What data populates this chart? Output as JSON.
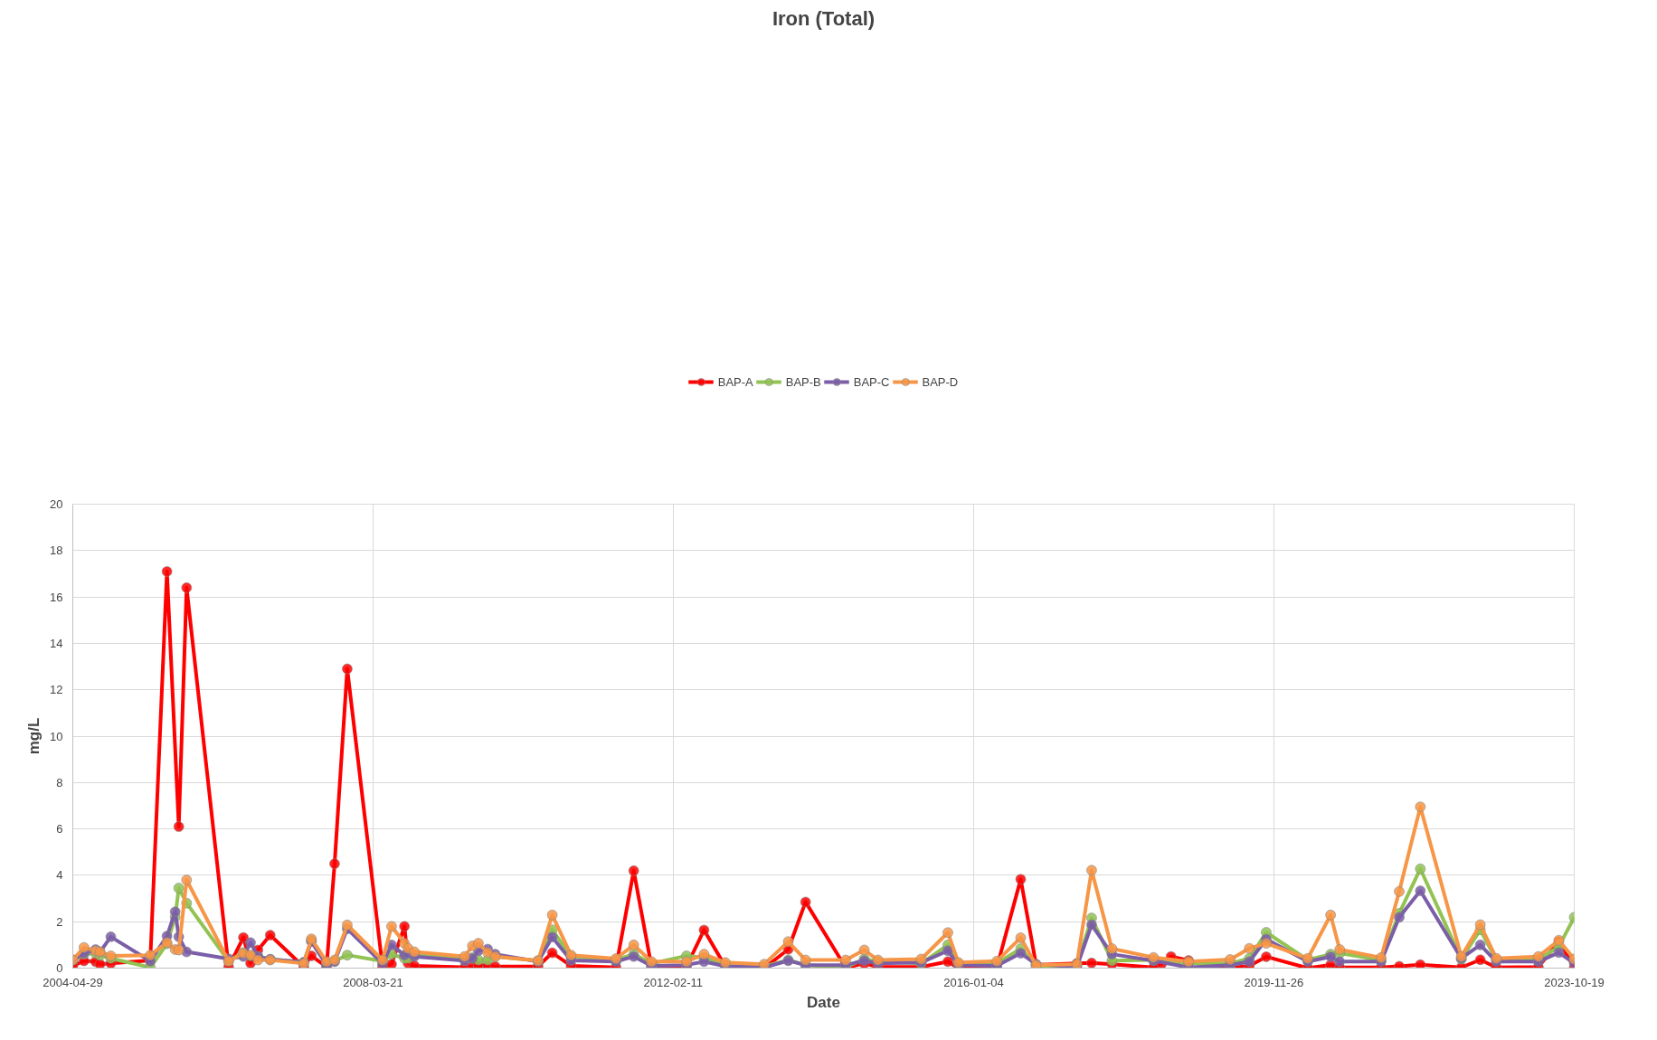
{
  "chart_data": {
    "type": "line",
    "title": "Iron (Total)",
    "xlabel": "Date",
    "ylabel": "mg/L",
    "x": [
      "2004-04-29",
      "2004-06-21",
      "2004-08-15",
      "2004-09-05",
      "2004-10-26",
      "2005-05-01",
      "2005-07-19",
      "2005-08-27",
      "2005-09-13",
      "2005-10-20",
      "2006-05-07",
      "2006-07-16",
      "2006-08-19",
      "2006-09-23",
      "2006-11-20",
      "2007-04-28",
      "2007-06-03",
      "2007-08-14",
      "2007-09-21",
      "2007-11-20",
      "2008-05-05",
      "2008-06-17",
      "2008-08-17",
      "2008-09-03",
      "2008-10-03",
      "2009-05-29",
      "2009-07-05",
      "2009-08-02",
      "2009-09-15",
      "2009-10-21",
      "2010-05-12",
      "2010-07-18",
      "2010-10-15",
      "2011-05-16",
      "2011-08-08",
      "2011-10-31",
      "2012-04-14",
      "2012-07-06",
      "2012-10-15",
      "2013-04-17",
      "2013-08-09",
      "2013-10-30",
      "2014-05-08",
      "2014-08-04",
      "2014-10-08",
      "2015-05-01",
      "2015-09-04",
      "2015-10-24",
      "2016-04-23",
      "2016-08-14",
      "2016-10-26",
      "2017-05-07",
      "2017-07-16",
      "2017-10-20",
      "2018-05-05",
      "2018-10-18",
      "2019-05-03",
      "2019-08-02",
      "2019-10-21",
      "2020-05-05",
      "2020-08-21",
      "2020-10-03",
      "2021-04-17",
      "2021-07-12",
      "2021-10-20",
      "2022-05-02",
      "2022-07-31",
      "2022-10-15",
      "2023-05-02",
      "2023-08-07",
      "2023-10-19"
    ],
    "series": [
      {
        "name": "BAP-A",
        "color": "#ff0000",
        "x": [
          "2004-04-29",
          "2004-06-21",
          "2004-08-15",
          "2004-09-05",
          "2004-10-26",
          "2005-05-01",
          "2005-07-19",
          "2005-09-13",
          "2005-10-20",
          "2006-05-07",
          "2006-07-16",
          "2006-08-19",
          "2006-09-23",
          "2006-11-20",
          "2007-04-28",
          "2007-06-03",
          "2007-08-14",
          "2007-09-21",
          "2007-11-20",
          "2008-05-05",
          "2008-06-17",
          "2008-08-17",
          "2008-09-03",
          "2008-10-03",
          "2009-05-29",
          "2009-07-05",
          "2009-08-02",
          "2009-09-15",
          "2009-10-21",
          "2010-05-12",
          "2010-07-18",
          "2010-10-15",
          "2011-05-16",
          "2011-08-08",
          "2011-10-31",
          "2012-04-14",
          "2012-07-06",
          "2012-10-15",
          "2013-04-17",
          "2013-08-09",
          "2013-10-30",
          "2014-05-08",
          "2014-08-04",
          "2014-10-08",
          "2015-05-01",
          "2015-09-04",
          "2015-10-24",
          "2016-04-23",
          "2016-08-14",
          "2016-10-26",
          "2017-05-07",
          "2017-07-16",
          "2017-10-20",
          "2018-05-05",
          "2018-06-14",
          "2018-07-27",
          "2018-10-18",
          "2019-05-03",
          "2019-08-02",
          "2019-10-21",
          "2020-05-05",
          "2020-08-21",
          "2020-10-03",
          "2021-04-17",
          "2021-07-12",
          "2021-10-20",
          "2022-05-02",
          "2022-07-31",
          "2022-10-15",
          "2023-05-02",
          "2023-08-07",
          "2023-10-19"
        ],
        "values": [
          0.09,
          0.31,
          0.28,
          0.17,
          0.2,
          0.33,
          17.1,
          6.1,
          16.4,
          0.05,
          1.32,
          0.21,
          0.78,
          1.42,
          0.05,
          0.53,
          0.05,
          4.5,
          12.9,
          0.06,
          0.17,
          1.8,
          0.21,
          0.1,
          0.03,
          0.07,
          0.1,
          0.1,
          0.07,
          0.08,
          0.66,
          0.1,
          0.03,
          4.2,
          0.07,
          0.07,
          1.64,
          0.07,
          0.0,
          0.81,
          2.85,
          0.02,
          0.2,
          0.05,
          0.05,
          0.28,
          0.0,
          0.03,
          3.83,
          0.14,
          0.2,
          0.22,
          0.17,
          0.03,
          0.2,
          0.5,
          0.33,
          0.0,
          0.1,
          0.49,
          0.0,
          0.14,
          0.03,
          0.03,
          0.08,
          0.15,
          0.03,
          0.36,
          0.03,
          0.05,
          1.14,
          0.03
        ]
      },
      {
        "name": "BAP-B",
        "color": "#92c353",
        "values": [
          0.35,
          0.6,
          0.64,
          0.55,
          0.42,
          0.03,
          1.05,
          2.2,
          3.45,
          2.8,
          0.3,
          0.67,
          0.53,
          0.5,
          0.38,
          0.25,
          1.2,
          0.2,
          0.3,
          0.56,
          0.3,
          0.6,
          0.42,
          0.42,
          0.58,
          0.4,
          0.45,
          0.35,
          0.35,
          0.5,
          0.32,
          1.65,
          0.5,
          0.35,
          0.6,
          0.2,
          0.53,
          0.45,
          0.15,
          0.07,
          0.35,
          0.13,
          0.03,
          0.4,
          0.28,
          0.2,
          1.0,
          0.2,
          0.2,
          0.84,
          0.08,
          0.1,
          2.16,
          0.32,
          0.35,
          0.2,
          0.2,
          0.42,
          1.54,
          0.35,
          0.6,
          0.64,
          0.35,
          2.36,
          4.28,
          0.39,
          1.65,
          0.35,
          0.35,
          0.93,
          2.19
        ]
      },
      {
        "name": "BAP-C",
        "color": "#7b5ea7",
        "values": [
          0.35,
          0.64,
          0.8,
          0.7,
          1.35,
          0.3,
          1.38,
          2.43,
          1.35,
          0.7,
          0.4,
          0.5,
          1.1,
          0.5,
          0.38,
          0.25,
          1.14,
          0.13,
          0.28,
          1.69,
          0.2,
          1.0,
          0.56,
          0.64,
          0.5,
          0.32,
          0.42,
          0.75,
          0.82,
          0.6,
          0.28,
          1.34,
          0.33,
          0.28,
          0.5,
          0.1,
          0.13,
          0.28,
          0.08,
          0.03,
          0.32,
          0.13,
          0.13,
          0.32,
          0.2,
          0.24,
          0.75,
          0.13,
          0.1,
          0.64,
          0.17,
          0.06,
          1.87,
          0.6,
          0.32,
          0.03,
          0.13,
          0.28,
          1.25,
          0.28,
          0.49,
          0.28,
          0.28,
          2.19,
          3.33,
          0.42,
          1.0,
          0.28,
          0.28,
          0.67,
          0.21
        ]
      },
      {
        "name": "BAP-D",
        "color": "#f79646",
        "values": [
          0.35,
          0.89,
          0.75,
          0.7,
          0.53,
          0.56,
          1.1,
          0.8,
          0.78,
          3.8,
          0.3,
          0.64,
          0.56,
          0.35,
          0.35,
          0.2,
          1.26,
          0.28,
          0.35,
          1.86,
          0.35,
          1.8,
          1.07,
          0.85,
          0.7,
          0.5,
          0.96,
          1.07,
          0.67,
          0.5,
          0.32,
          2.29,
          0.56,
          0.41,
          1.0,
          0.28,
          0.28,
          0.6,
          0.24,
          0.17,
          1.14,
          0.35,
          0.35,
          0.78,
          0.35,
          0.39,
          1.53,
          0.24,
          0.3,
          1.31,
          0.13,
          0.17,
          4.22,
          0.84,
          0.46,
          0.28,
          0.37,
          0.85,
          1.07,
          0.42,
          2.29,
          0.8,
          0.45,
          3.3,
          6.95,
          0.5,
          1.87,
          0.42,
          0.5,
          1.2,
          0.39
        ]
      }
    ],
    "xlim": [
      "2004-04-29",
      "2023-10-19"
    ],
    "xticks": [
      "2004-04-29",
      "2008-03-21",
      "2012-02-11",
      "2016-01-04",
      "2019-11-26",
      "2023-10-19"
    ],
    "ylim": [
      0,
      20
    ],
    "yticks": [
      0,
      2,
      4,
      6,
      8,
      10,
      12,
      14,
      16,
      18,
      20
    ],
    "grid": true,
    "legend": "top",
    "marker": "circle",
    "line_style": "solid"
  }
}
